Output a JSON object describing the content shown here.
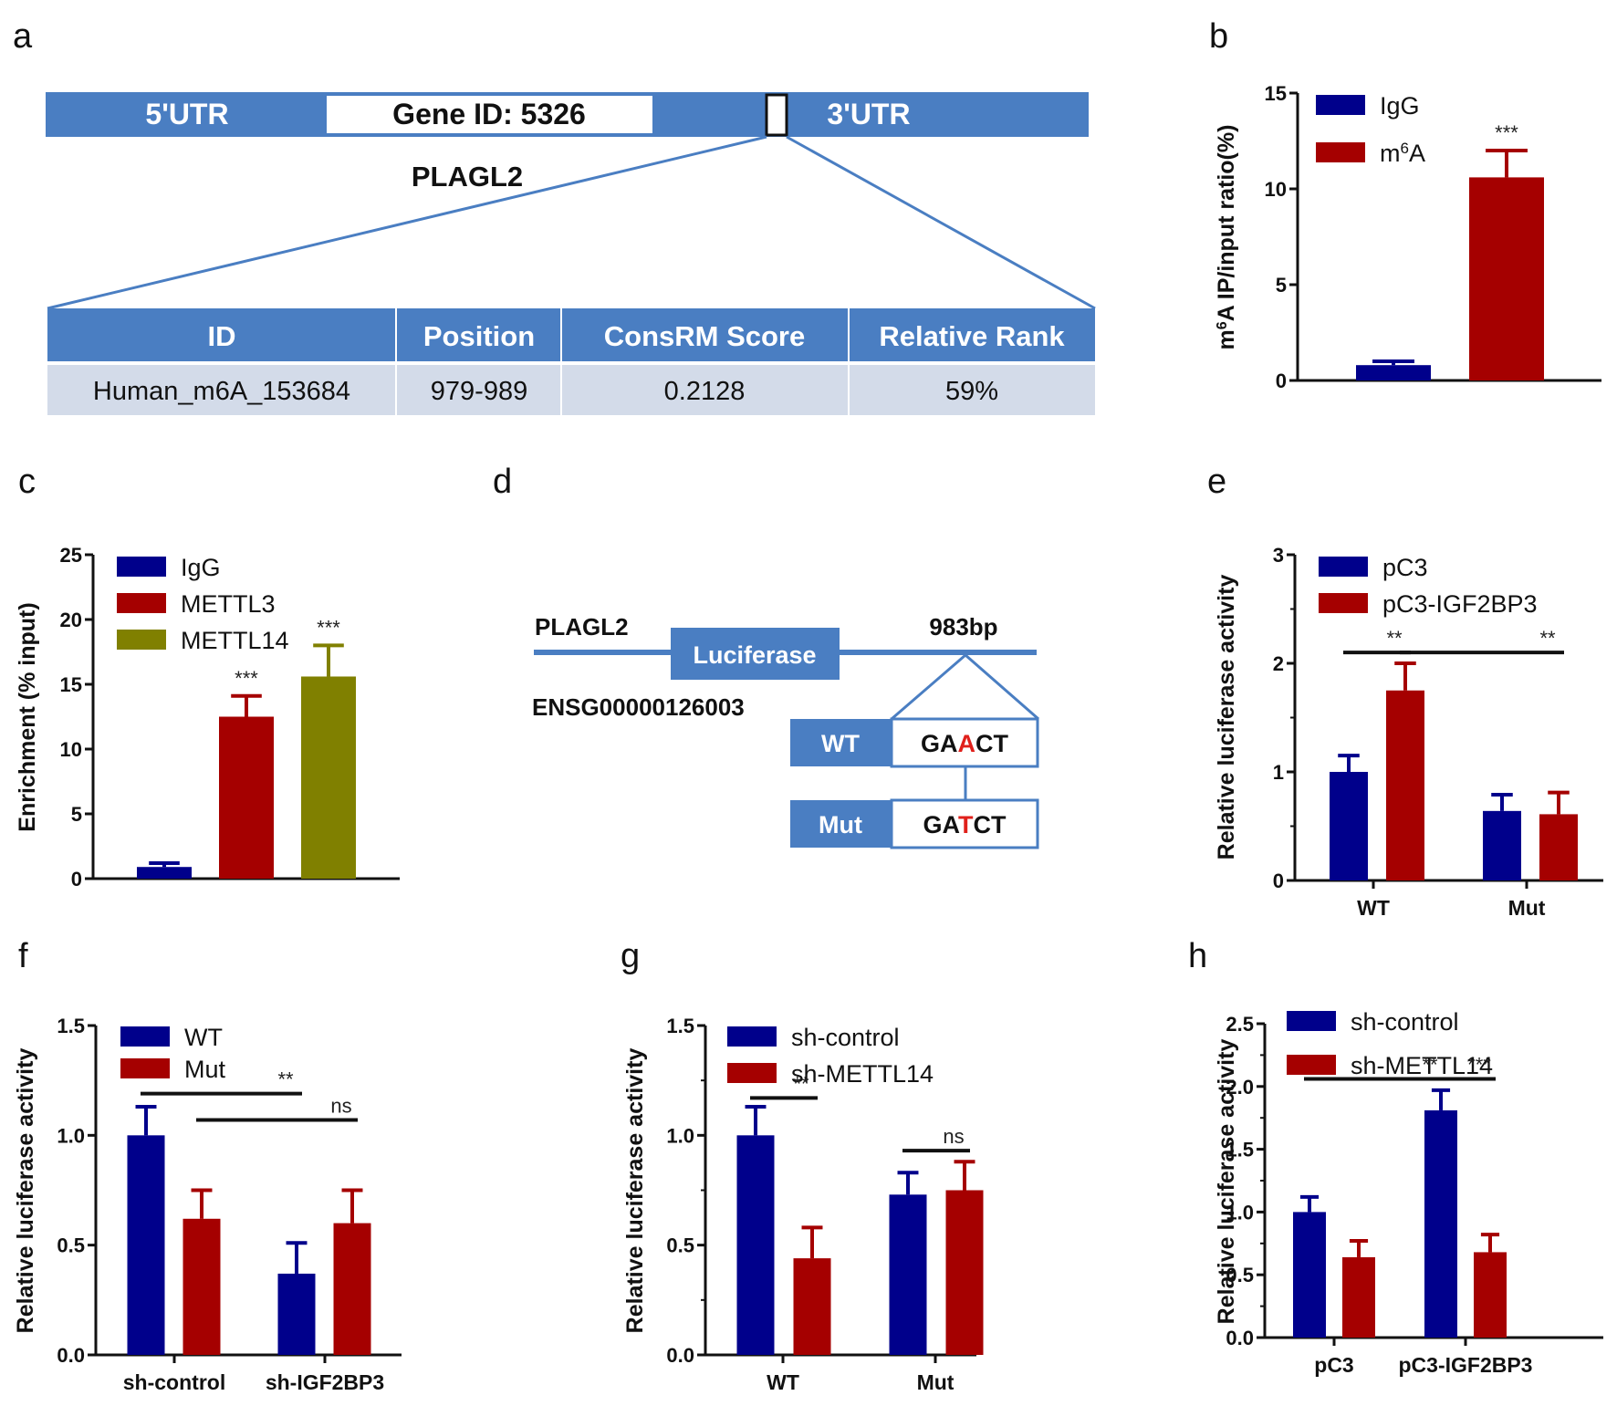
{
  "colors": {
    "diagram_blue": "#4a7ec2",
    "table_row_bg": "#d3dbe9",
    "navy": "#00008b",
    "crimson": "#a50000",
    "olive": "#808000",
    "highlight_red": "#e0201b"
  },
  "panel_a": {
    "label": "a",
    "utr5": "5'UTR",
    "gene_id": "Gene ID: 5326",
    "utr3": "3'UTR",
    "gene_name": "PLAGL2",
    "table": {
      "headers": [
        "ID",
        "Position",
        "ConsRM Score",
        "Relative Rank"
      ],
      "rows": [
        [
          "Human_m6A_153684",
          "979-989",
          "0.2128",
          "59%"
        ]
      ]
    }
  },
  "panel_d": {
    "label": "d",
    "gene": "PLAGL2",
    "ensembl": "ENSG00000126003",
    "reporter": "Luciferase",
    "site": "983bp",
    "wt_label": "WT",
    "wt_seq": [
      "GA",
      "A",
      "CT"
    ],
    "mut_label": "Mut",
    "mut_seq": [
      "GA",
      "T",
      "CT"
    ]
  },
  "chart_data": [
    {
      "id": "b",
      "label": "b",
      "type": "bar",
      "title": "",
      "xlabel": "",
      "ylabel": "m6A IP/input ratio(%)",
      "ylabel_parts": [
        "m",
        "6",
        "A IP/input ratio(%)"
      ],
      "ylim": [
        0,
        15
      ],
      "yticks": [
        0,
        5,
        10,
        15
      ],
      "ytick_labels": [
        "0",
        "5",
        "10",
        "15"
      ],
      "minor_ticks": false,
      "grid": false,
      "legend_position": "top-left",
      "categories": [
        ""
      ],
      "series": [
        {
          "name": "IgG",
          "legend": [
            "IgG",
            "",
            ""
          ],
          "color": "#00008b",
          "values": [
            0.8
          ],
          "errors": [
            0.2
          ]
        },
        {
          "name": "m6A",
          "legend": [
            "m",
            "6",
            "A"
          ],
          "color": "#a50000",
          "values": [
            10.6
          ],
          "errors": [
            1.4
          ]
        }
      ],
      "annotations": [
        {
          "text": "***",
          "type": "above-bar",
          "series": 1,
          "category": 0
        }
      ]
    },
    {
      "id": "c",
      "label": "c",
      "type": "bar",
      "title": "",
      "xlabel": "",
      "ylabel": "Enrichment (% input)",
      "ylim": [
        0,
        25
      ],
      "yticks": [
        0,
        5,
        10,
        15,
        20,
        25
      ],
      "ytick_labels": [
        "0",
        "5",
        "10",
        "15",
        "20",
        "25"
      ],
      "minor_ticks": false,
      "grid": false,
      "legend_position": "top-left",
      "categories": [
        ""
      ],
      "series": [
        {
          "name": "IgG",
          "color": "#00008b",
          "values": [
            0.9
          ],
          "errors": [
            0.3
          ]
        },
        {
          "name": "METTL3",
          "color": "#a50000",
          "values": [
            12.5
          ],
          "errors": [
            1.6
          ]
        },
        {
          "name": "METTL14",
          "color": "#808000",
          "values": [
            15.6
          ],
          "errors": [
            2.4
          ]
        }
      ],
      "annotations": [
        {
          "text": "***",
          "type": "above-bar",
          "series": 1,
          "category": 0
        },
        {
          "text": "***",
          "type": "above-bar",
          "series": 2,
          "category": 0
        }
      ]
    },
    {
      "id": "e",
      "label": "e",
      "type": "bar",
      "title": "",
      "xlabel": "",
      "ylabel": "Relative luciferase activity",
      "ylim": [
        0,
        3
      ],
      "yticks": [
        0,
        1,
        2,
        3
      ],
      "ytick_labels": [
        "0",
        "1",
        "2",
        "3"
      ],
      "minor_ticks": true,
      "grid": false,
      "legend_position": "top-left",
      "categories": [
        "WT",
        "Mut"
      ],
      "series": [
        {
          "name": "pC3",
          "color": "#00008b",
          "values": [
            1.0,
            0.64
          ],
          "errors": [
            0.15,
            0.15
          ]
        },
        {
          "name": "pC3-IGF2BP3",
          "color": "#a50000",
          "values": [
            1.75,
            0.61
          ],
          "errors": [
            0.25,
            0.2
          ]
        }
      ],
      "annotations": [
        {
          "text": "**",
          "type": "bracket",
          "from": [
            0,
            0
          ],
          "to": [
            0,
            1
          ],
          "y": 2.1
        },
        {
          "text": "**",
          "type": "bracket",
          "from": [
            0,
            1
          ],
          "to": [
            1,
            1
          ],
          "y": 2.1
        }
      ]
    },
    {
      "id": "f",
      "label": "f",
      "type": "bar",
      "title": "",
      "xlabel": "",
      "ylabel": "Relative luciferase activity",
      "ylim": [
        0,
        1.5
      ],
      "yticks": [
        0,
        0.5,
        1.0,
        1.5
      ],
      "ytick_labels": [
        "0.0",
        "0.5",
        "1.0",
        "1.5"
      ],
      "minor_ticks": false,
      "grid": false,
      "legend_position": "top-left",
      "categories": [
        "sh-control",
        "sh-IGF2BP3"
      ],
      "series": [
        {
          "name": "WT",
          "color": "#00008b",
          "values": [
            1.0,
            0.37
          ],
          "errors": [
            0.13,
            0.14
          ]
        },
        {
          "name": "Mut",
          "color": "#a50000",
          "values": [
            0.62,
            0.6
          ],
          "errors": [
            0.13,
            0.15
          ]
        }
      ],
      "annotations": [
        {
          "text": "**",
          "type": "bracket",
          "from": [
            0,
            0
          ],
          "to": [
            1,
            0
          ],
          "y": 1.19
        },
        {
          "text": "ns",
          "type": "bracket",
          "from": [
            0,
            1
          ],
          "to": [
            1,
            1
          ],
          "y": 1.07
        }
      ]
    },
    {
      "id": "g",
      "label": "g",
      "type": "bar",
      "title": "",
      "xlabel": "",
      "ylabel": "Relative luciferase activity",
      "ylim": [
        0,
        1.5
      ],
      "yticks": [
        0,
        0.5,
        1.0,
        1.5
      ],
      "ytick_labels": [
        "0.0",
        "0.5",
        "1.0",
        "1.5"
      ],
      "minor_ticks": true,
      "grid": false,
      "legend_position": "top-left",
      "categories": [
        "WT",
        "Mut"
      ],
      "series": [
        {
          "name": "sh-control",
          "color": "#00008b",
          "values": [
            1.0,
            0.73
          ],
          "errors": [
            0.13,
            0.1
          ]
        },
        {
          "name": "sh-METTL14",
          "color": "#a50000",
          "values": [
            0.44,
            0.75
          ],
          "errors": [
            0.14,
            0.13
          ]
        }
      ],
      "annotations": [
        {
          "text": "**",
          "type": "bracket",
          "from": [
            0,
            0
          ],
          "to": [
            0,
            1
          ],
          "y": 1.17
        },
        {
          "text": "ns",
          "type": "bracket",
          "from": [
            1,
            0
          ],
          "to": [
            1,
            1
          ],
          "y": 0.93
        }
      ]
    },
    {
      "id": "h",
      "label": "h",
      "type": "bar",
      "title": "",
      "xlabel": "",
      "ylabel": "Relative luciferase activity",
      "ylim": [
        0,
        2.5
      ],
      "yticks": [
        0,
        0.5,
        1.0,
        1.5,
        2.0,
        2.5
      ],
      "ytick_labels": [
        "0.0",
        "0.5",
        "1.0",
        "1.5",
        "2.0",
        "2.5"
      ],
      "minor_ticks": true,
      "grid": false,
      "legend_position": "top-left",
      "categories": [
        "pC3",
        "pC3-IGF2BP3"
      ],
      "series": [
        {
          "name": "sh-control",
          "color": "#00008b",
          "values": [
            1.0,
            1.81
          ],
          "errors": [
            0.12,
            0.16
          ]
        },
        {
          "name": "sh-METTL14",
          "color": "#a50000",
          "values": [
            0.64,
            0.68
          ],
          "errors": [
            0.13,
            0.14
          ]
        }
      ],
      "annotations": [
        {
          "text": "**",
          "type": "bracket",
          "from": [
            0,
            0
          ],
          "to": [
            1,
            0
          ],
          "y": 2.06
        },
        {
          "text": "***",
          "type": "bracket",
          "from": [
            1,
            0
          ],
          "to": [
            1,
            1
          ],
          "y": 2.06
        }
      ]
    }
  ]
}
